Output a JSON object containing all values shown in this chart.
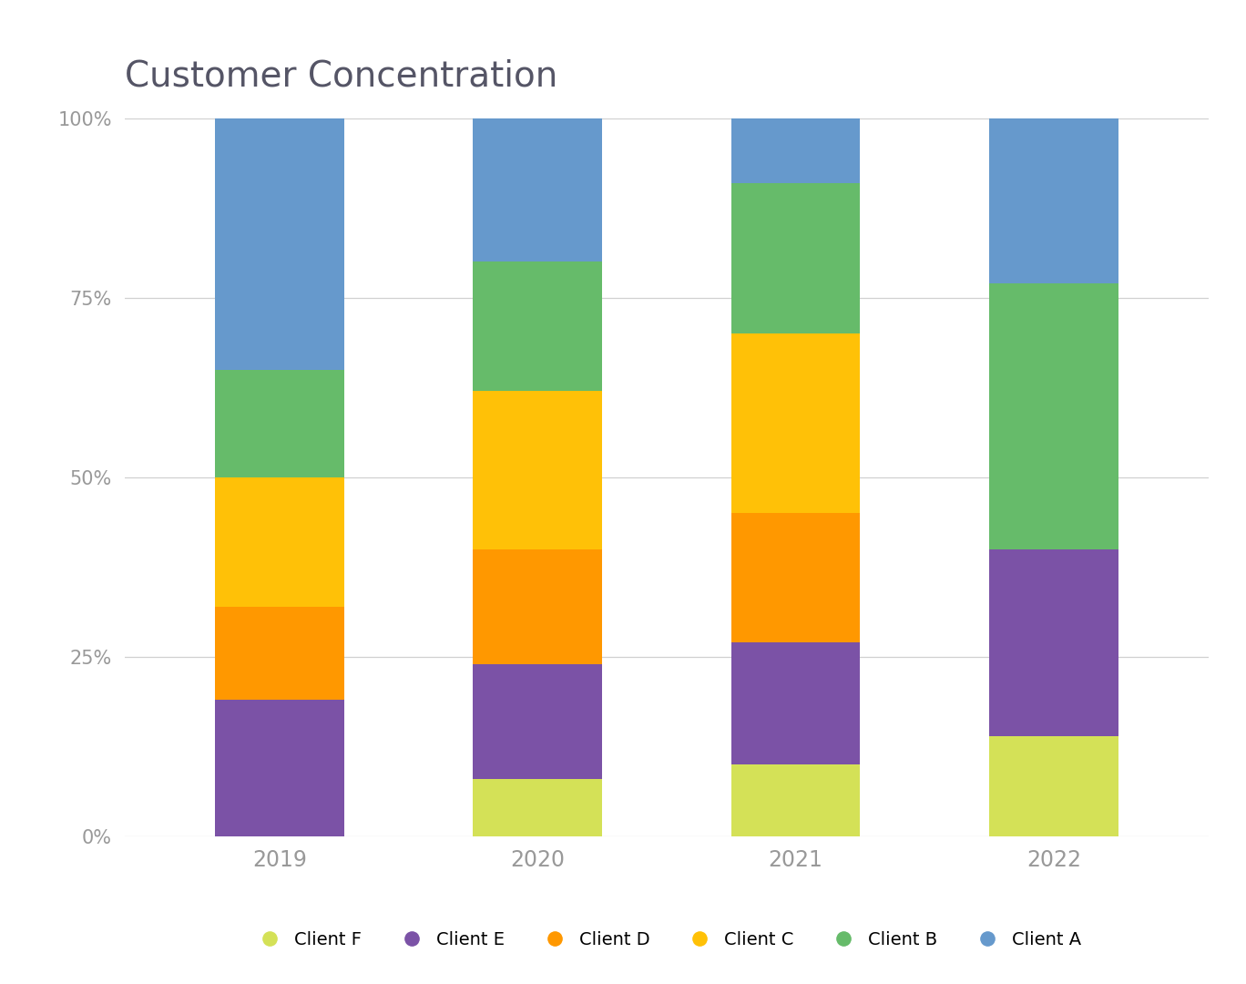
{
  "title": "Customer Concentration",
  "years": [
    "2019",
    "2020",
    "2021",
    "2022"
  ],
  "clients": [
    "Client F",
    "Client E",
    "Client D",
    "Client C",
    "Client B",
    "Client A"
  ],
  "colors": [
    "#d4e157",
    "#7b52a6",
    "#ff9800",
    "#ffc107",
    "#66bb6a",
    "#6699cc"
  ],
  "values": {
    "Client F": [
      0,
      8,
      10,
      14
    ],
    "Client E": [
      19,
      16,
      17,
      26
    ],
    "Client D": [
      13,
      16,
      18,
      0
    ],
    "Client C": [
      18,
      22,
      25,
      0
    ],
    "Client B": [
      15,
      18,
      21,
      37
    ],
    "Client A": [
      35,
      20,
      9,
      23
    ]
  },
  "yticks": [
    0,
    25,
    50,
    75,
    100
  ],
  "ytick_labels": [
    "0%",
    "25%",
    "50%",
    "75%",
    "100%"
  ],
  "background_color": "#ffffff",
  "grid_color": "#d0d0d0",
  "title_color": "#555566",
  "title_fontsize": 28,
  "tick_fontsize": 15,
  "legend_fontsize": 14,
  "bar_width": 0.5,
  "legend_marker_size": 13
}
